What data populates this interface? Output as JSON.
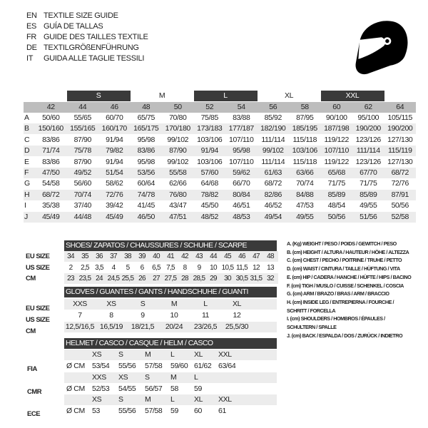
{
  "titles": [
    {
      "code": "EN",
      "text": "TEXTILE SIZE GUIDE"
    },
    {
      "code": "ES",
      "text": "GUÍA DE TALLAS"
    },
    {
      "code": "FR",
      "text": "GUIDE DES TAILLES TEXTILE"
    },
    {
      "code": "DE",
      "text": "TEXTILGRÖßENFÜHRUNG"
    },
    {
      "code": "IT",
      "text": "GUIDA ALLE TAGLIE TESSILI"
    }
  ],
  "icon": "helmet-icon",
  "colors": {
    "dark": "#3a3a3a",
    "header_gray": "#bdbdbd",
    "row_gray": "#ececec"
  },
  "textile": {
    "size_bands": [
      {
        "label": "S",
        "span": [
          1,
          2
        ],
        "dark": true
      },
      {
        "label": "M",
        "span": [
          3,
          4
        ],
        "dark": false
      },
      {
        "label": "L",
        "span": [
          5,
          6
        ],
        "dark": true
      },
      {
        "label": "XL",
        "span": [
          7,
          8
        ],
        "dark": false
      },
      {
        "label": "XXL",
        "span": [
          9,
          10
        ],
        "dark": true
      }
    ],
    "columns": [
      "42",
      "44",
      "46",
      "48",
      "50",
      "52",
      "54",
      "56",
      "58",
      "60",
      "62",
      "64"
    ],
    "rows": [
      {
        "label": "A",
        "values": [
          "50/60",
          "55/65",
          "60/70",
          "65/75",
          "70/80",
          "75/85",
          "83/88",
          "85/92",
          "87/95",
          "90/100",
          "95/100",
          "105/115"
        ]
      },
      {
        "label": "B",
        "values": [
          "150/160",
          "155/165",
          "160/170",
          "165/175",
          "170/180",
          "173/183",
          "177/187",
          "182/190",
          "185/195",
          "187/198",
          "190/200",
          "190/200"
        ]
      },
      {
        "label": "C",
        "values": [
          "83/86",
          "87/90",
          "91/94",
          "95/98",
          "99/102",
          "103/106",
          "107/110",
          "111/114",
          "115/118",
          "119/122",
          "123/126",
          "127/130"
        ]
      },
      {
        "label": "D",
        "values": [
          "71/74",
          "75/78",
          "79/82",
          "83/86",
          "87/90",
          "91/94",
          "95/98",
          "99/102",
          "103/106",
          "107/110",
          "111/114",
          "115/119"
        ]
      },
      {
        "label": "E",
        "values": [
          "83/86",
          "87/90",
          "91/94",
          "95/98",
          "99/102",
          "103/106",
          "107/110",
          "111/114",
          "115/118",
          "119/122",
          "123/126",
          "127/130"
        ]
      },
      {
        "label": "F",
        "values": [
          "47/50",
          "49/52",
          "51/54",
          "53/56",
          "55/58",
          "57/60",
          "59/62",
          "61/63",
          "63/66",
          "65/68",
          "67/70",
          "68/72"
        ]
      },
      {
        "label": "G",
        "values": [
          "54/58",
          "56/60",
          "58/62",
          "60/64",
          "62/66",
          "64/68",
          "66/70",
          "68/72",
          "70/74",
          "71/75",
          "71/75",
          "72/76"
        ]
      },
      {
        "label": "H",
        "values": [
          "68/72",
          "70/74",
          "72/76",
          "74/78",
          "76/80",
          "78/82",
          "80/84",
          "82/86",
          "84/88",
          "85/89",
          "85/89",
          "87/91"
        ]
      },
      {
        "label": "I",
        "values": [
          "35/38",
          "37/40",
          "39/42",
          "41/45",
          "43/47",
          "45/50",
          "46/51",
          "46/52",
          "47/53",
          "48/54",
          "49/55",
          "50/56"
        ]
      },
      {
        "label": "J",
        "values": [
          "45/49",
          "44/48",
          "45/49",
          "46/50",
          "47/51",
          "48/52",
          "48/53",
          "49/54",
          "49/55",
          "50/56",
          "51/56",
          "52/58"
        ]
      }
    ]
  },
  "shoes": {
    "title": "SHOES/ ZAPATOS / CHAUSSURES / SCHUHE / SCARPE",
    "rows": [
      {
        "label": "EU SIZE",
        "values": [
          "34",
          "35",
          "36",
          "37",
          "38",
          "39",
          "40",
          "41",
          "42",
          "43",
          "44",
          "45",
          "46",
          "47",
          "48"
        ]
      },
      {
        "label": "US SIZE",
        "values": [
          "2",
          "2,5",
          "3,5",
          "4",
          "5",
          "6",
          "6,5",
          "7,5",
          "8",
          "9",
          "10",
          "10,5",
          "11,5",
          "12",
          "13"
        ]
      },
      {
        "label": "CM",
        "values": [
          "23",
          "23,5",
          "24",
          "24,5",
          "25,5",
          "26",
          "27",
          "27,5",
          "28",
          "28,5",
          "29",
          "30",
          "30,5",
          "31,5",
          "32"
        ]
      }
    ]
  },
  "gloves": {
    "title": "GLOVES / GUANTES / GANTS / HANDSCHUHE / GUANTI",
    "rows": [
      {
        "label": "EU SIZE",
        "values": [
          "XXS",
          "XS",
          "S",
          "M",
          "L",
          "XL"
        ]
      },
      {
        "label": "US SIZE",
        "values": [
          "7",
          "8",
          "9",
          "10",
          "11",
          "12"
        ]
      },
      {
        "label": "CM",
        "values": [
          "12,5/16,5",
          "16,5/19",
          "18/21,5",
          "20/24",
          "23/26,5",
          "25,5/30"
        ]
      }
    ]
  },
  "helmet": {
    "title": "HELMET / CASCO / CASQUE / HELM / CASCO",
    "unit": "Ø CM",
    "standards": [
      {
        "label": "FIA",
        "sizes": [
          "XS",
          "S",
          "M",
          "L",
          "XL",
          "XXL"
        ],
        "values": [
          "53/54",
          "55/56",
          "57/58",
          "59/60",
          "61/62",
          "63/64"
        ]
      },
      {
        "label": "CMR",
        "sizes": [
          "XXS",
          "XS",
          "S",
          "M",
          "L"
        ],
        "values": [
          "52/53",
          "54/55",
          "56/57",
          "58",
          "59"
        ]
      },
      {
        "label": "ECE",
        "sizes": [
          "XS",
          "S",
          "M",
          "L",
          "XL",
          "XXL"
        ],
        "values": [
          "53",
          "55/56",
          "57/58",
          "59",
          "60",
          "61"
        ]
      }
    ]
  },
  "legend": [
    "A. (Kg) WEIGHT / PESO / POIDS / GEWITCH / PESO",
    "B. (cm) HEIGHT / ALTURA / HAUTEUR / HÖHE / ALTEZZA",
    "C. (cm) CHEST / PECHO / POITRINE / TRUHE / PETTO",
    "D. (cm) WAIST / CINTURA / TAILLE / HÜFTUNG / VITA",
    "E. (cm) HIP / CADERA / HANCHE / HÜFTE / HIPS /  BACINO",
    "F.  (cm) TIGH / MUSLO / CUISSE / SCHENKEL / COSCIA",
    "G. (cm) ARM  / BRAZO / BRAS / ARM / BRACCIO",
    "H. (cm) INSIDE LEG / ENTREPIERNA / FOURCHE /",
    "SCHRITT / FORCELLA",
    "I.  (cm) SHOULDERS / HOMBROS / ÉPAULES /",
    "SCHULTERN / SPALLE",
    "J. (cm) BACK / ESPALDA / DOS / ZURÜCK / INDIETRO"
  ]
}
